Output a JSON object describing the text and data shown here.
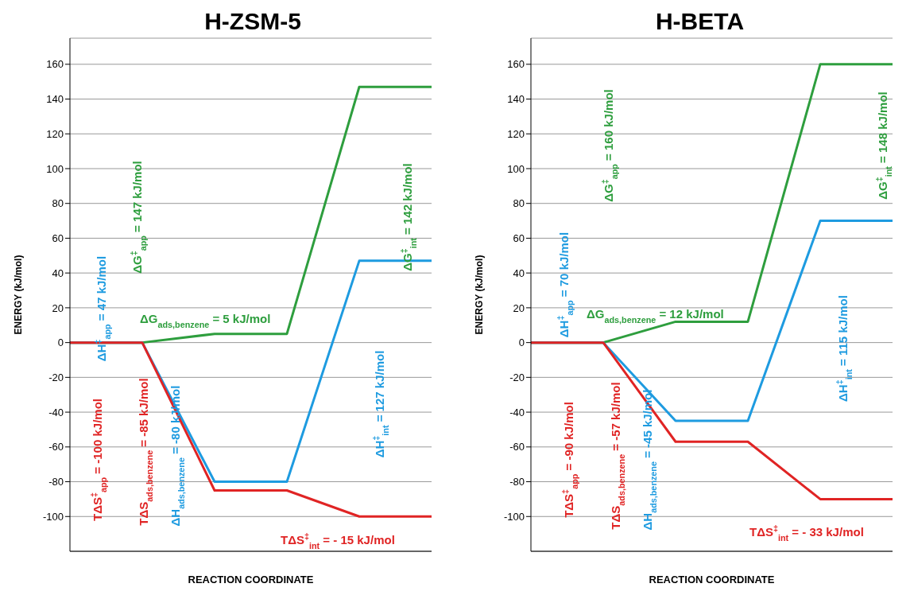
{
  "chart_data": [
    {
      "type": "line",
      "title": "H-ZSM-5",
      "xlabel": "REACTION COORDINATE",
      "ylabel": "ENERGY (kJ/mol)",
      "categories": [
        null,
        null,
        null,
        null,
        null,
        null
      ],
      "series": [
        {
          "color": "#2e9e3e",
          "values": [
            0,
            0,
            5,
            5,
            147,
            147
          ]
        },
        {
          "color": "#1e9be0",
          "values": [
            0,
            0,
            -80,
            -80,
            47,
            47
          ]
        },
        {
          "color": "#e02424",
          "values": [
            0,
            0,
            -85,
            -85,
            -100,
            -100
          ]
        }
      ],
      "ylim": [
        -120,
        175
      ],
      "yticks": [
        -100,
        -80,
        -60,
        -40,
        -20,
        0,
        20,
        40,
        60,
        80,
        100,
        120,
        140,
        160
      ],
      "grid": "y",
      "legend": false,
      "tick_labels": "y",
      "marker": "none",
      "line_style": "solid",
      "annotations": [
        "ΔG$^{‡}$$_{app}$ = 147 kJ/mol",
        "ΔG$^{‡}$$_{int}$ = 142 kJ/mol",
        "ΔH$^{‡}$$_{app}$ = 47 kJ/mol",
        "ΔG$_{ads,benzene}$ = 5 kJ/mol",
        "ΔH$^{‡}$$_{int}$ = 127 kJ/mol",
        "TΔS$^{‡}$$_{app}$ = -100 kJ/mol",
        "TΔS$_{ads,benzene}$ = -85 kJ/mol",
        "ΔH$_{ads,benzene}$ = -80 kJ/mol",
        "TΔS$^{‡}$$_{int}$ = - 15 kJ/mol"
      ]
    },
    {
      "type": "line",
      "title": "H-BETA",
      "xlabel": "REACTION COORDINATE",
      "ylabel": "ENERGY (kJ/mol)",
      "categories": [
        null,
        null,
        null,
        null,
        null,
        null
      ],
      "series": [
        {
          "color": "#2e9e3e",
          "values": [
            0,
            0,
            12,
            12,
            160,
            160
          ]
        },
        {
          "color": "#1e9be0",
          "values": [
            0,
            0,
            -45,
            -45,
            70,
            70
          ]
        },
        {
          "color": "#e02424",
          "values": [
            0,
            0,
            -57,
            -57,
            -90,
            -90
          ]
        }
      ],
      "ylim": [
        -120,
        175
      ],
      "yticks": [
        -100,
        -80,
        -60,
        -40,
        -20,
        0,
        20,
        40,
        60,
        80,
        100,
        120,
        140,
        160
      ],
      "grid": "y",
      "legend": false,
      "tick_labels": "y",
      "marker": "none",
      "line_style": "solid",
      "annotations": [
        "ΔG$^{‡}$$_{app}$ = 160 kJ/mol",
        "ΔG$^{‡}$$_{int}$ = 148 kJ/mol",
        "ΔH$^{‡}$$_{app}$ = 70 kJ/mol",
        "ΔG$_{ads,benzene}$ = 12 kJ/mol",
        "ΔH$^{‡}$$_{int}$ = 115 kJ/mol",
        "TΔS$^{‡}$$_{app}$ = -90 kJ/mol",
        "TΔS$_{ads,benzene}$ = -57 kJ/mol",
        "ΔH$_{ads,benzene}$ = -45 kJ/mol",
        "TΔS$^{‡}$$_{int}$ = - 33 kJ/mol"
      ]
    }
  ]
}
